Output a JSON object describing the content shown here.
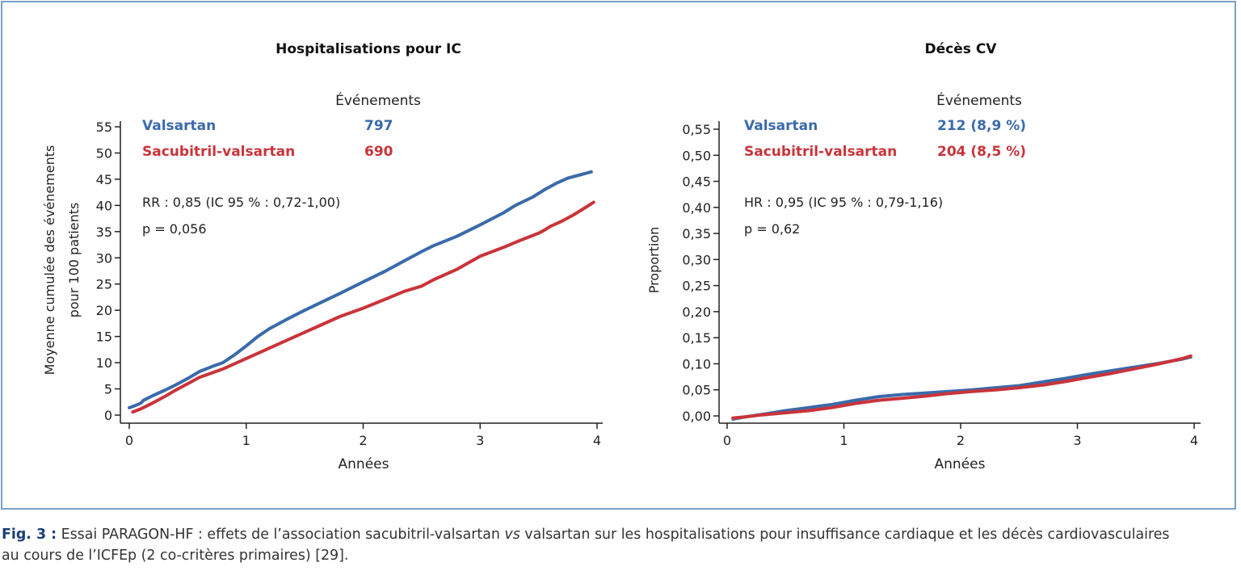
{
  "caption": {
    "label": "Fig. 3 :",
    "part1": " Essai PARAGON-HF : effets de l’association sacubitril-valsartan ",
    "vs": "vs",
    "part2": " valsartan sur les hospitalisations pour insuffisance cardiaque et les décès cardiovasculaires",
    "line2": "au cours de l’ICFEp (2 co-critères primaires) [29]."
  },
  "colors": {
    "valsartan": "#3a6aaa",
    "sacubitril": "#c9343a",
    "frame": "#7a9fc8",
    "axis": "#222222"
  },
  "chart_data": [
    {
      "type": "line",
      "title": "Hospitalisations pour IC",
      "xlabel": "Années",
      "ylabel": [
        "Moyenne cumulée des événements",
        "pour 100 patients"
      ],
      "xlim": [
        0,
        4
      ],
      "ylim": [
        0,
        55
      ],
      "xticks": [
        "0",
        "1",
        "2",
        "3",
        "4"
      ],
      "xtick_values": [
        0,
        1,
        2,
        3,
        4
      ],
      "yticks": [
        "0",
        "5",
        "10",
        "15",
        "20",
        "25",
        "30",
        "35",
        "40",
        "45",
        "50",
        "55"
      ],
      "ytick_values": [
        0,
        5,
        10,
        15,
        20,
        25,
        30,
        35,
        40,
        45,
        50,
        55
      ],
      "grid": false,
      "events_header": "Événements",
      "stats": [
        "RR : 0,85 (IC 95 % : 0,72-1,00)",
        "p = 0,056"
      ],
      "series": [
        {
          "name": "Valsartan",
          "events": "797",
          "color": "#3a6aaa",
          "x": [
            0,
            0.05,
            0.1,
            0.12,
            0.2,
            0.3,
            0.4,
            0.5,
            0.6,
            0.7,
            0.8,
            0.9,
            1.0,
            1.1,
            1.2,
            1.35,
            1.5,
            1.65,
            1.8,
            2.0,
            2.2,
            2.4,
            2.5,
            2.6,
            2.8,
            3.0,
            3.2,
            3.3,
            3.45,
            3.55,
            3.65,
            3.75,
            3.85,
            3.95
          ],
          "y": [
            1.4,
            1.8,
            2.3,
            2.8,
            3.7,
            4.7,
            5.8,
            7.0,
            8.3,
            9.2,
            10.0,
            11.5,
            13.2,
            15.0,
            16.5,
            18.3,
            20.0,
            21.6,
            23.2,
            25.4,
            27.6,
            30.0,
            31.2,
            32.3,
            34.1,
            36.3,
            38.6,
            40.0,
            41.6,
            43.0,
            44.2,
            45.2,
            45.8,
            46.4
          ]
        },
        {
          "name": "Sacubitril-valsartan",
          "events": "690",
          "color": "#c9343a",
          "x": [
            0.03,
            0.1,
            0.2,
            0.3,
            0.4,
            0.5,
            0.6,
            0.7,
            0.8,
            0.9,
            1.0,
            1.2,
            1.4,
            1.6,
            1.8,
            2.0,
            2.2,
            2.35,
            2.5,
            2.6,
            2.8,
            3.0,
            3.2,
            3.35,
            3.5,
            3.55,
            3.6,
            3.7,
            3.8,
            3.9,
            3.97
          ],
          "y": [
            0.6,
            1.2,
            2.3,
            3.5,
            4.8,
            6.0,
            7.2,
            8.0,
            8.8,
            9.8,
            10.8,
            12.8,
            14.8,
            16.8,
            18.8,
            20.4,
            22.2,
            23.6,
            24.6,
            25.8,
            27.8,
            30.3,
            32.0,
            33.4,
            34.7,
            35.3,
            36.0,
            37.0,
            38.2,
            39.6,
            40.6
          ]
        }
      ]
    },
    {
      "type": "line",
      "title": "Décès CV",
      "xlabel": "Années",
      "ylabel": "Proportion",
      "xlim": [
        0,
        4
      ],
      "ylim": [
        0,
        0.55
      ],
      "xticks": [
        "0",
        "1",
        "2",
        "3",
        "4"
      ],
      "xtick_values": [
        0,
        1,
        2,
        3,
        4
      ],
      "yticks": [
        "0,00",
        "0,05",
        "0,10",
        "0,15",
        "0,20",
        "0,25",
        "0,30",
        "0,35",
        "0,40",
        "0,45",
        "0,50",
        "0,55"
      ],
      "ytick_values": [
        0,
        0.05,
        0.1,
        0.15,
        0.2,
        0.25,
        0.3,
        0.35,
        0.4,
        0.45,
        0.5,
        0.55
      ],
      "grid": false,
      "events_header": "Événements",
      "stats": [
        "HR : 0,95 (IC 95 % : 0,79-1,16)",
        "p = 0,62"
      ],
      "series": [
        {
          "name": "Valsartan",
          "events": "212 (8,9 %)",
          "color": "#3a6aaa",
          "x": [
            0.05,
            0.15,
            0.3,
            0.5,
            0.7,
            0.9,
            1.1,
            1.3,
            1.5,
            1.7,
            1.9,
            2.1,
            2.3,
            2.5,
            2.7,
            2.9,
            3.1,
            3.3,
            3.5,
            3.7,
            3.9,
            3.97
          ],
          "y": [
            -0.006,
            -0.002,
            0.003,
            0.01,
            0.016,
            0.022,
            0.03,
            0.037,
            0.041,
            0.044,
            0.047,
            0.05,
            0.054,
            0.058,
            0.065,
            0.072,
            0.08,
            0.087,
            0.094,
            0.101,
            0.109,
            0.113
          ]
        },
        {
          "name": "Sacubitril-valsartan",
          "events": "204 (8,5 %)",
          "color": "#c9343a",
          "x": [
            0.05,
            0.15,
            0.3,
            0.5,
            0.7,
            0.9,
            1.1,
            1.3,
            1.5,
            1.7,
            1.9,
            2.1,
            2.3,
            2.5,
            2.7,
            2.9,
            3.1,
            3.3,
            3.5,
            3.7,
            3.9,
            3.97
          ],
          "y": [
            -0.004,
            -0.002,
            0.002,
            0.006,
            0.01,
            0.016,
            0.024,
            0.03,
            0.034,
            0.038,
            0.043,
            0.047,
            0.05,
            0.054,
            0.059,
            0.066,
            0.074,
            0.082,
            0.091,
            0.1,
            0.11,
            0.115
          ]
        }
      ]
    }
  ]
}
